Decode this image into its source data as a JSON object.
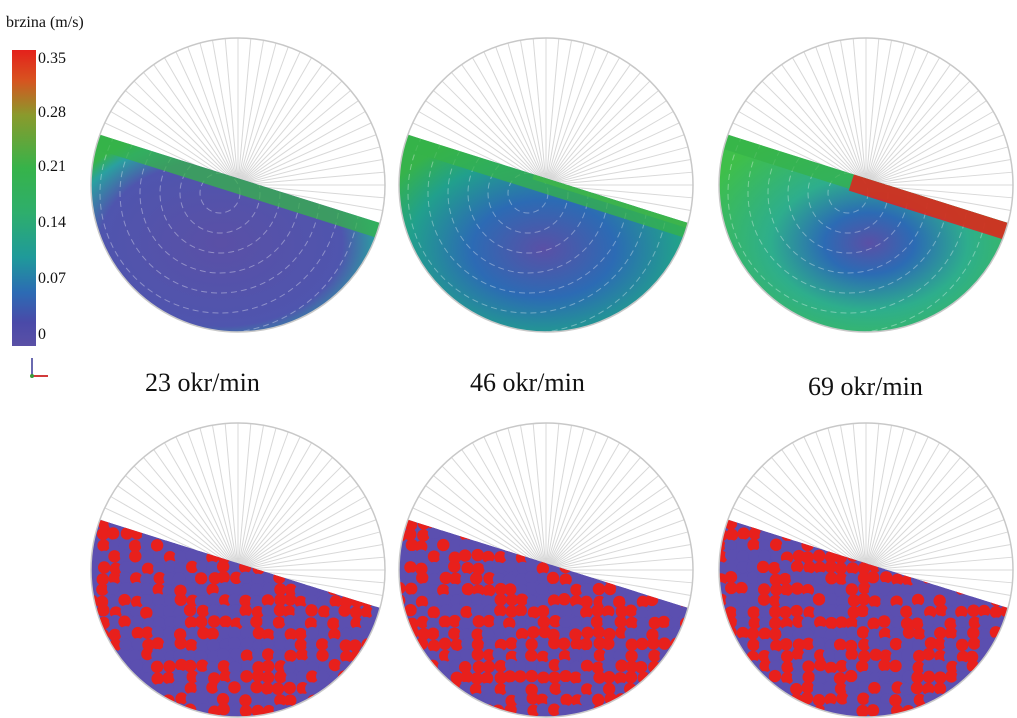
{
  "legend": {
    "title": "brzina (m/s)",
    "ticks": [
      "0.35",
      "0.28",
      "0.21",
      "0.14",
      "0.07",
      "0"
    ],
    "colors": {
      "high": "#e4211c",
      "mid": "#36b34a",
      "low": "#5a50a6"
    }
  },
  "panels": [
    {
      "speed_label": "23 okr/min",
      "fill_tint": "#5a50a6"
    },
    {
      "speed_label": "46 okr/min",
      "fill_tint": "#2c8aa8"
    },
    {
      "speed_label": "69 okr/min",
      "fill_tint": "#36b34a"
    }
  ],
  "particle_colors": {
    "red": "#e8201c",
    "blue": "#5b4fb0"
  }
}
